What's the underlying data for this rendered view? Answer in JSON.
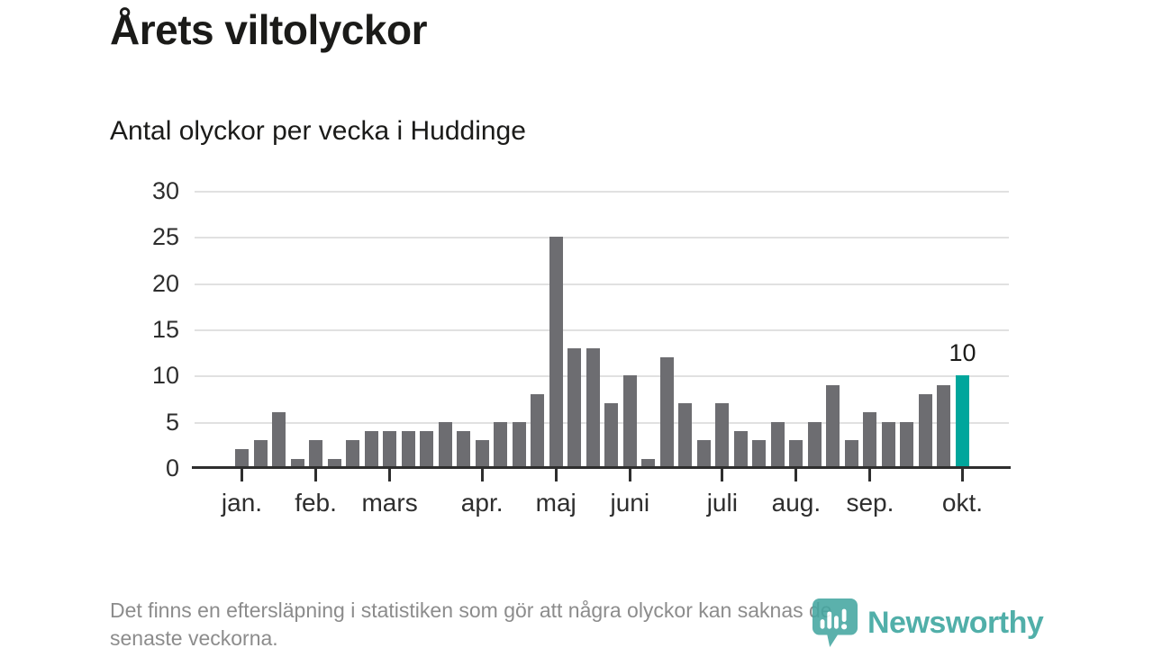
{
  "page": {
    "title": "Årets viltolyckor",
    "subtitle": "Antal olyckor per vecka i Huddinge",
    "footer_lines": [
      "Det finns en eftersläpning i statistiken som gör att några olyckor kan saknas de",
      "senaste veckorna."
    ],
    "logo": {
      "text": "Newsworthy",
      "icon": "newsworthy-pin-icon",
      "color": "#3aa49e"
    }
  },
  "chart_data": {
    "type": "bar",
    "title": "Årets viltolyckor",
    "subtitle": "Antal olyckor per vecka i Huddinge",
    "values": [
      2,
      3,
      6,
      1,
      3,
      1,
      3,
      4,
      4,
      4,
      4,
      5,
      4,
      3,
      5,
      5,
      8,
      25,
      13,
      13,
      7,
      10,
      1,
      12,
      7,
      3,
      7,
      4,
      3,
      5,
      3,
      5,
      9,
      3,
      6,
      5,
      5,
      8,
      9,
      10
    ],
    "highlight_index": 39,
    "highlight_value_label": "10",
    "y_ticks": [
      0,
      5,
      10,
      15,
      20,
      25,
      30
    ],
    "ylim": [
      0,
      30
    ],
    "grid": true,
    "legend": false,
    "month_ticks": [
      {
        "label": "jan.",
        "bar_index": 0
      },
      {
        "label": "feb.",
        "bar_index": 4
      },
      {
        "label": "mars",
        "bar_index": 8
      },
      {
        "label": "apr.",
        "bar_index": 13
      },
      {
        "label": "maj",
        "bar_index": 17
      },
      {
        "label": "juni",
        "bar_index": 21
      },
      {
        "label": "juli",
        "bar_index": 26
      },
      {
        "label": "aug.",
        "bar_index": 30
      },
      {
        "label": "sep.",
        "bar_index": 34
      },
      {
        "label": "okt.",
        "bar_index": 39
      }
    ],
    "colors": {
      "bar": "#6d6d71",
      "highlight": "#00a69c",
      "axis": "#2e2e2e",
      "grid": "#e1e1e1"
    }
  }
}
